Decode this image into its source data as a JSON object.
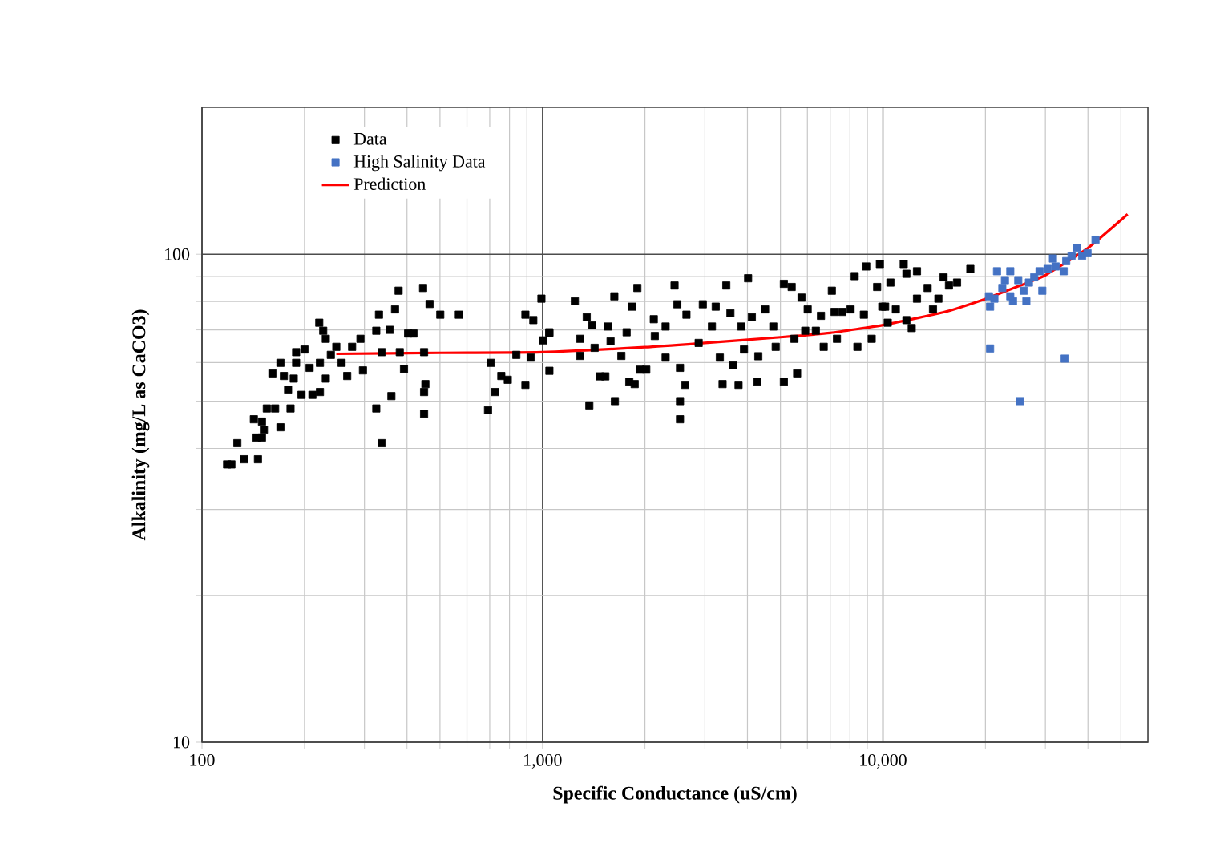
{
  "chart_data": {
    "type": "scatter",
    "xlabel": "Specific Conductance (uS/cm)",
    "ylabel": "Alkalinity (mg/L as CaCO3)",
    "log": "xy",
    "xlim": [
      100,
      60000
    ],
    "ylim": [
      10,
      200
    ],
    "xticks": [
      100,
      {
        "value": 1000,
        "label": "1,000"
      },
      {
        "value": 10000,
        "label": "10,000"
      }
    ],
    "yticks": [
      10,
      100
    ],
    "grid": true,
    "legend": "top left",
    "series": [
      {
        "name": "Data",
        "color": "#000000",
        "marker": "square",
        "x": [
          118.5,
          122,
          127,
          133,
          146,
          142,
          144.5,
          150,
          152,
          155,
          150,
          161,
          164,
          170,
          170,
          174,
          179,
          182,
          186,
          189,
          196,
          189,
          200,
          207,
          211,
          221,
          227,
          231,
          222,
          231,
          222,
          239,
          248,
          257,
          267,
          276,
          292,
          297,
          325,
          331,
          337,
          325,
          337,
          356,
          360,
          369,
          378,
          381,
          392,
          403,
          418,
          446,
          449,
          453,
          449,
          449,
          466,
          501,
          568,
          692,
          705,
          726,
          757,
          791,
          838,
          891,
          891,
          940,
          924,
          993,
          1004,
          1047,
          1048,
          1048,
          1245,
          1291,
          1291,
          1349,
          1373,
          1399,
          1423,
          1476,
          1530,
          1557,
          1585,
          1626,
          1632,
          1705,
          1767,
          1799,
          1832,
          1866,
          1900,
          1932,
          2018,
          2123,
          2138,
          2300,
          2300,
          2443,
          2489,
          2535,
          2535,
          2535,
          2626,
          2648,
          2876,
          2958,
          3146,
          3228,
          3319,
          3381,
          3467,
          3565,
          3631,
          3767,
          3837,
          3908,
          4018,
          4121,
          4276,
          4305,
          4508,
          4764,
          4842,
          5117,
          5117,
          5395,
          5495,
          5598,
          5768,
          5913,
          6012,
          6353,
          6577,
          6699,
          7079,
          7211,
          7328,
          7603,
          8035,
          8260,
          8414,
          8790,
          8933,
          9268,
          9616,
          9795,
          9954,
          10330,
          10520,
          11510,
          11720,
          12590,
          13530,
          15070,
          15630,
          18060,
          14550,
          12590,
          11720,
          10910,
          10150,
          12150,
          14030,
          16510
        ],
        "values": [
          37.1,
          37.1,
          41.0,
          38.0,
          38.0,
          45.9,
          42.1,
          42.1,
          43.7,
          48.3,
          45.4,
          57.0,
          48.3,
          44.2,
          59.9,
          56.3,
          52.8,
          48.3,
          55.6,
          59.9,
          51.5,
          63.0,
          63.8,
          58.5,
          51.5,
          72.4,
          69.7,
          67.1,
          59.9,
          55.6,
          52.2,
          62.2,
          64.6,
          59.9,
          56.3,
          64.6,
          67.1,
          57.8,
          69.7,
          75.2,
          63.0,
          48.3,
          41.0,
          70.0,
          51.2,
          77.1,
          84.2,
          63.0,
          58.2,
          68.8,
          68.8,
          85.3,
          63.0,
          54.2,
          52.2,
          47.1,
          79.1,
          75.2,
          75.2,
          47.9,
          59.9,
          52.2,
          56.3,
          55.3,
          62.2,
          75.2,
          54.0,
          73.3,
          61.4,
          81.1,
          66.6,
          69.2,
          57.7,
          68.9,
          80.1,
          67.1,
          61.9,
          74.3,
          49.0,
          71.5,
          64.3,
          56.2,
          56.2,
          71.1,
          66.3,
          82.0,
          50.0,
          61.9,
          69.2,
          54.8,
          78.1,
          54.2,
          85.3,
          58.0,
          58.0,
          73.6,
          68.0,
          71.1,
          61.4,
          86.3,
          79.0,
          58.5,
          50.0,
          45.9,
          54.0,
          75.2,
          65.8,
          79.0,
          71.1,
          78.1,
          61.4,
          54.2,
          86.3,
          75.7,
          59.2,
          54.0,
          71.1,
          63.8,
          89.3,
          74.3,
          54.8,
          61.8,
          77.1,
          71.1,
          64.6,
          54.8,
          87.0,
          85.7,
          67.1,
          57.0,
          81.5,
          69.7,
          77.1,
          69.7,
          74.8,
          64.6,
          84.2,
          76.2,
          67.1,
          76.2,
          77.1,
          90.2,
          64.6,
          75.2,
          94.4,
          67.1,
          85.7,
          95.5,
          78.1,
          72.4,
          87.5,
          95.5,
          91.2,
          92.3,
          85.3,
          89.7,
          86.3,
          93.3,
          81.1,
          81.1,
          73.3,
          77.1,
          78.1,
          70.6,
          77.1,
          87.5
        ]
      },
      {
        "name": "High Salinity Data",
        "color": "#4472c4",
        "marker": "square",
        "x": [
          20640,
          20480,
          21630,
          22420,
          23660,
          24100,
          24970,
          25900,
          26380,
          26840,
          27820,
          28840,
          29380,
          30460,
          31570,
          32150,
          33960,
          34540,
          35810,
          37120,
          38480,
          39890,
          42100,
          20640,
          34180,
          25250,
          23660,
          22820,
          21250
        ],
        "values": [
          78.1,
          82.0,
          92.3,
          85.3,
          92.3,
          80.1,
          88.5,
          84.2,
          80.1,
          87.5,
          89.7,
          92.3,
          84.2,
          93.3,
          98.0,
          94.4,
          92.3,
          96.8,
          99.3,
          103.1,
          99.3,
          100.5,
          107.1,
          64.1,
          61.1,
          50.0,
          82.0,
          88.5,
          81.1
        ]
      },
      {
        "name": "Prediction",
        "type": "line",
        "color": "#ff0000",
        "line_style": "solid",
        "marker": "none",
        "x": [
          248,
          500,
          1000,
          2000,
          3000,
          5000,
          7000,
          10000,
          15000,
          20000,
          25000,
          30000,
          40000,
          52300
        ],
        "values": [
          62.5,
          62.8,
          63.0,
          64.5,
          65.8,
          67.6,
          69.0,
          71.6,
          76.0,
          81.0,
          86.0,
          90.6,
          103.0,
          120.8
        ]
      }
    ]
  }
}
